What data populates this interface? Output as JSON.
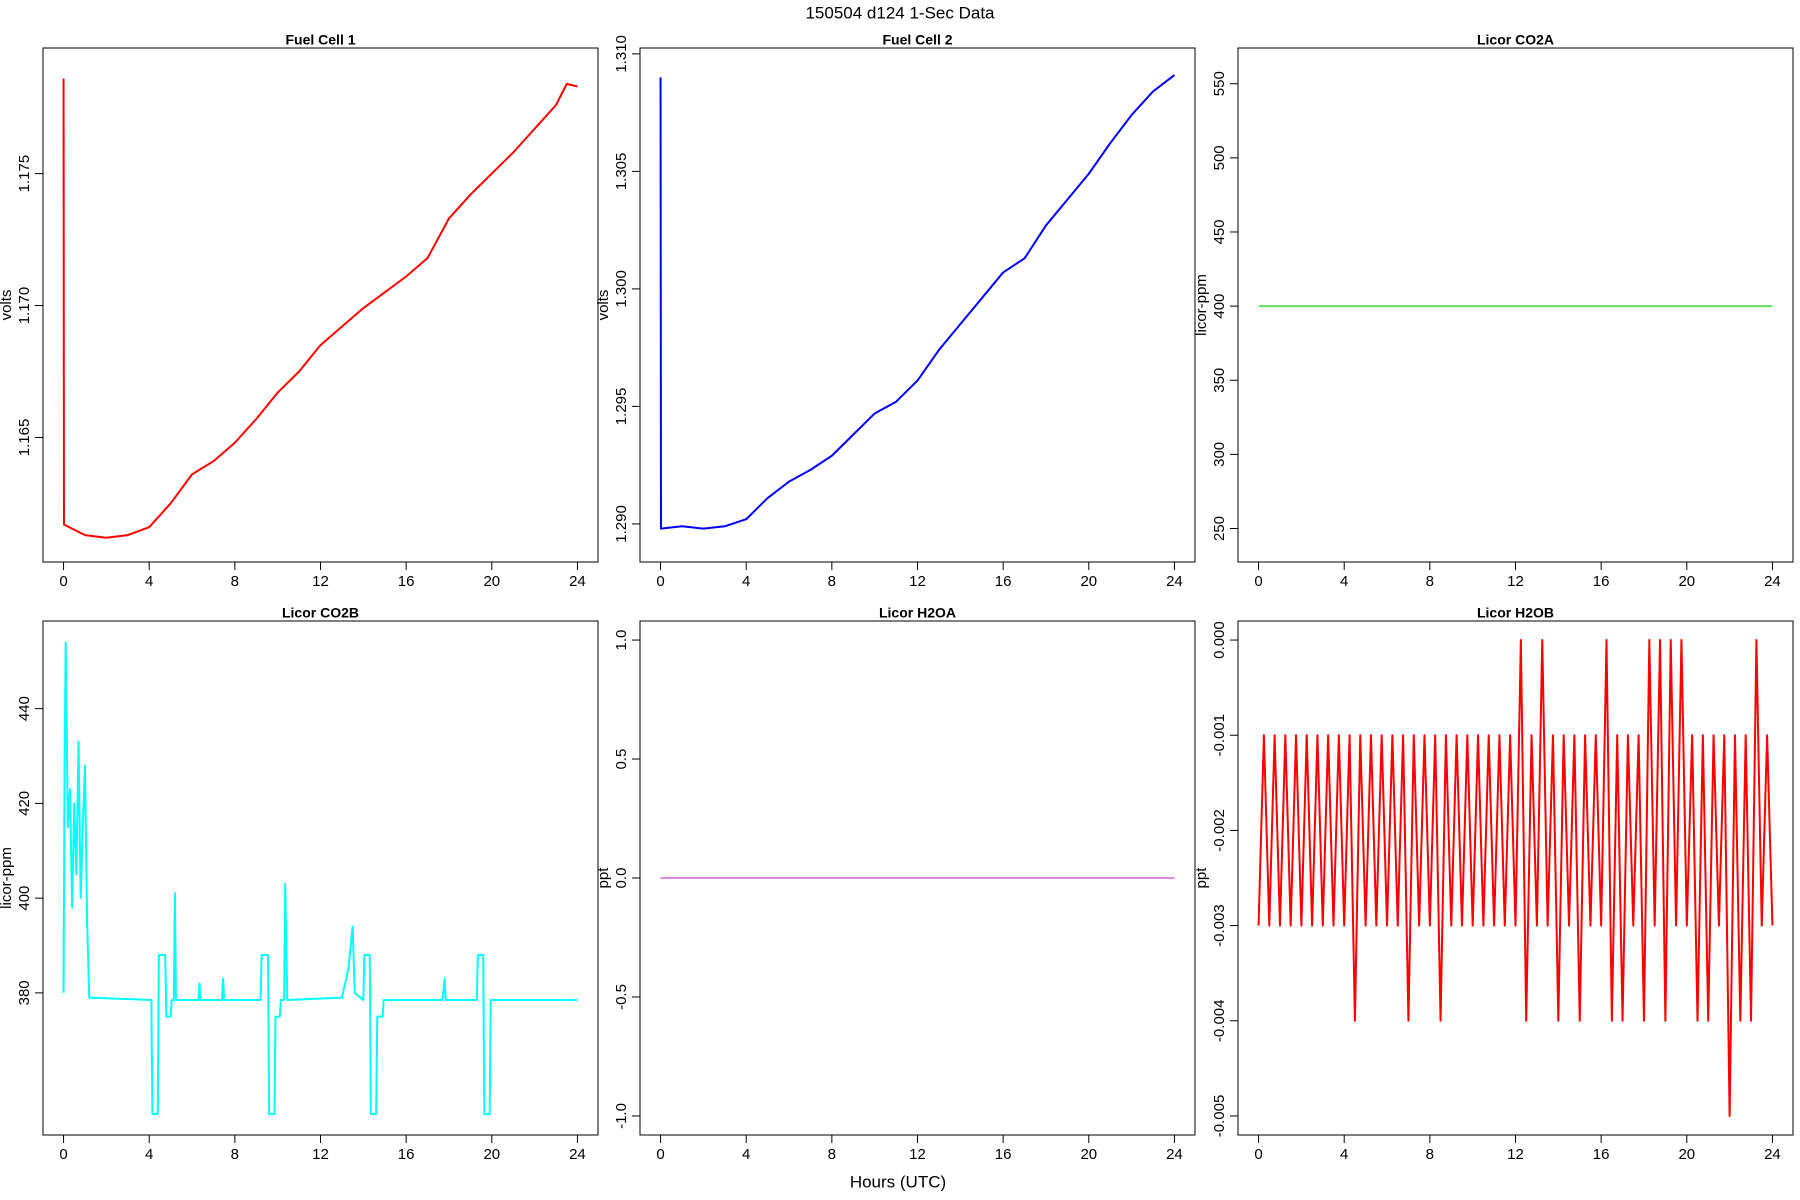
{
  "title": "150504   d124   1-Sec Data",
  "x_label": "Hours (UTC)",
  "chart_data": [
    {
      "type": "line",
      "title": "Fuel Cell 1",
      "y_label": "volts",
      "color": "#ff0000",
      "xlim": [
        -0.96,
        24.96
      ],
      "xticks": [
        0,
        4,
        8,
        12,
        16,
        20,
        24
      ],
      "ylim": [
        1.16028,
        1.17976
      ],
      "yticks": [
        1.165,
        {
          "value": 1.17,
          "label": "1.170"
        },
        1.175
      ],
      "x": [
        0,
        0.02,
        1,
        2,
        3,
        4,
        5,
        6,
        7,
        8,
        9,
        10,
        11,
        12,
        13,
        14,
        15,
        16,
        17,
        18,
        19,
        20,
        21,
        22,
        23,
        23.5,
        24
      ],
      "values": [
        1.1786,
        1.1617,
        1.1613,
        1.1612,
        1.1613,
        1.1616,
        1.1625,
        1.1636,
        1.1641,
        1.1648,
        1.1657,
        1.1667,
        1.1675,
        1.1685,
        1.1692,
        1.1699,
        1.1705,
        1.1711,
        1.1718,
        1.1733,
        1.1742,
        1.175,
        1.1758,
        1.1767,
        1.1776,
        1.1784,
        1.1783
      ]
    },
    {
      "type": "line",
      "title": "Fuel Cell 2",
      "y_label": "volts",
      "color": "#0000ff",
      "xlim": [
        -0.96,
        24.96
      ],
      "xticks": [
        0,
        4,
        8,
        12,
        16,
        20,
        24
      ],
      "ylim": [
        1.28838,
        1.31025
      ],
      "yticks": [
        {
          "value": 1.29,
          "label": "1.290"
        },
        1.295,
        {
          "value": 1.3,
          "label": "1.300"
        },
        1.305,
        {
          "value": 1.31,
          "label": "1.310"
        }
      ],
      "x": [
        0,
        0.02,
        1,
        2,
        3,
        4,
        5,
        6,
        7,
        8,
        9,
        10,
        11,
        12,
        13,
        14,
        15,
        16,
        17,
        18,
        19,
        20,
        21,
        22,
        23,
        24
      ],
      "values": [
        1.309,
        1.2898,
        1.2899,
        1.2898,
        1.2899,
        1.2902,
        1.2911,
        1.2918,
        1.2923,
        1.2929,
        1.2938,
        1.2947,
        1.2952,
        1.2961,
        1.2974,
        1.2985,
        1.2996,
        1.3007,
        1.3013,
        1.3027,
        1.3038,
        1.3049,
        1.3062,
        1.3074,
        1.3084,
        1.3091
      ]
    },
    {
      "type": "line",
      "title": "Licor CO2A",
      "y_label": "licor-ppm",
      "color": "#66dd66",
      "xlim": [
        -0.96,
        24.96
      ],
      "xticks": [
        0,
        4,
        8,
        12,
        16,
        20,
        24
      ],
      "ylim": [
        227.4,
        574.1
      ],
      "yticks": [
        250,
        300,
        350,
        400,
        450,
        500,
        550
      ],
      "x": [
        0,
        24
      ],
      "values": [
        400,
        400
      ]
    },
    {
      "type": "line",
      "title": "Licor CO2B",
      "y_label": "licor-ppm",
      "color": "#00ffff",
      "xlim": [
        -0.96,
        24.96
      ],
      "xticks": [
        0,
        4,
        8,
        12,
        16,
        20,
        24
      ],
      "ylim": [
        350,
        458.5
      ],
      "yticks": [
        380,
        400,
        420,
        440
      ],
      "x": [
        0,
        0.05,
        0.1,
        0.2,
        0.3,
        0.4,
        0.5,
        0.6,
        0.7,
        0.8,
        0.9,
        1.0,
        1.1,
        1.2,
        4.1,
        4.15,
        4.4,
        4.45,
        4.75,
        4.8,
        5.0,
        5.05,
        5.15,
        5.2,
        5.25,
        6.3,
        6.35,
        6.4,
        7.4,
        7.45,
        7.5,
        9.2,
        9.25,
        9.55,
        9.6,
        9.85,
        9.9,
        10.1,
        10.15,
        10.3,
        10.35,
        10.45,
        13.0,
        13.3,
        13.5,
        13.6,
        14.0,
        14.05,
        14.3,
        14.35,
        14.6,
        14.65,
        14.9,
        14.95,
        17.7,
        17.8,
        17.85,
        19.3,
        19.35,
        19.6,
        19.65,
        19.9,
        19.95,
        24
      ],
      "values": [
        380,
        430,
        454,
        415,
        423,
        398,
        420,
        405,
        433,
        400,
        415,
        428,
        395,
        379,
        378.5,
        354.4,
        354.4,
        388,
        388,
        375,
        375,
        378.5,
        378.5,
        401,
        378.5,
        378.5,
        382,
        378.5,
        378.5,
        383,
        378.5,
        378.5,
        388,
        388,
        354.4,
        354.4,
        375,
        375,
        378.5,
        378.5,
        403,
        378.5,
        379,
        385,
        394,
        380,
        378.5,
        388,
        388,
        354.4,
        354.4,
        375,
        375,
        378.5,
        378.5,
        383,
        378.5,
        378.5,
        388,
        388,
        354.4,
        354.4,
        378.5,
        378.5
      ]
    },
    {
      "type": "line",
      "title": "Licor H2OA",
      "y_label": "ppt",
      "color": "#dd88dd",
      "xlim": [
        -0.96,
        24.96
      ],
      "xticks": [
        0,
        4,
        8,
        12,
        16,
        20,
        24
      ],
      "ylim": [
        -1.08,
        1.08
      ],
      "yticks": [
        {
          "value": -1,
          "label": "-1.0"
        },
        -0.5,
        {
          "value": 0,
          "label": "0.0"
        },
        0.5,
        {
          "value": 1,
          "label": "1.0"
        }
      ],
      "x": [
        0,
        24
      ],
      "values": [
        0,
        0
      ]
    },
    {
      "type": "line",
      "title": "Licor H2OB",
      "y_label": "ppt",
      "color": "#ff0000",
      "xlim": [
        -0.96,
        24.96
      ],
      "xticks": [
        0,
        4,
        8,
        12,
        16,
        20,
        24
      ],
      "ylim": [
        -0.0052,
        0.0002
      ],
      "yticks": [
        -0.005,
        -0.004,
        -0.003,
        -0.002,
        -0.001,
        {
          "value": 0,
          "label": "0.000"
        }
      ],
      "x": [
        0,
        0.25,
        0.5,
        0.75,
        1,
        1.25,
        1.5,
        1.75,
        2,
        2.25,
        2.5,
        2.75,
        3,
        3.25,
        3.5,
        3.75,
        4,
        4.25,
        4.5,
        4.75,
        5,
        5.25,
        5.5,
        5.75,
        6,
        6.25,
        6.5,
        6.75,
        7,
        7.25,
        7.5,
        7.75,
        8,
        8.25,
        8.5,
        8.75,
        9,
        9.25,
        9.5,
        9.75,
        10,
        10.25,
        10.5,
        10.75,
        11,
        11.25,
        11.5,
        11.75,
        12,
        12.25,
        12.5,
        12.75,
        13,
        13.25,
        13.5,
        13.75,
        14,
        14.25,
        14.5,
        14.75,
        15,
        15.25,
        15.5,
        15.75,
        16,
        16.25,
        16.5,
        16.75,
        17,
        17.25,
        17.5,
        17.75,
        18,
        18.25,
        18.5,
        18.75,
        19,
        19.25,
        19.5,
        19.75,
        20,
        20.25,
        20.5,
        20.75,
        21,
        21.25,
        21.5,
        21.75,
        22,
        22.25,
        22.5,
        22.75,
        23,
        23.25,
        23.5,
        23.75,
        24
      ],
      "values": [
        -0.003,
        -0.001,
        -0.003,
        -0.001,
        -0.003,
        -0.001,
        -0.003,
        -0.001,
        -0.003,
        -0.001,
        -0.003,
        -0.001,
        -0.003,
        -0.001,
        -0.003,
        -0.001,
        -0.003,
        -0.001,
        -0.004,
        -0.001,
        -0.003,
        -0.001,
        -0.003,
        -0.001,
        -0.003,
        -0.001,
        -0.003,
        -0.001,
        -0.004,
        -0.001,
        -0.003,
        -0.001,
        -0.003,
        -0.001,
        -0.004,
        -0.001,
        -0.003,
        -0.001,
        -0.003,
        -0.001,
        -0.003,
        -0.001,
        -0.003,
        -0.001,
        -0.003,
        -0.001,
        -0.003,
        -0.001,
        -0.003,
        0,
        -0.004,
        -0.001,
        -0.003,
        0,
        -0.003,
        -0.001,
        -0.004,
        -0.001,
        -0.003,
        -0.001,
        -0.004,
        -0.001,
        -0.003,
        -0.001,
        -0.003,
        0,
        -0.004,
        -0.001,
        -0.004,
        -0.001,
        -0.003,
        -0.001,
        -0.004,
        0,
        -0.003,
        0,
        -0.004,
        0,
        -0.003,
        0,
        -0.003,
        -0.001,
        -0.004,
        -0.001,
        -0.004,
        -0.001,
        -0.003,
        -0.001,
        -0.005,
        -0.001,
        -0.004,
        -0.001,
        -0.004,
        0,
        -0.003,
        -0.001,
        -0.003
      ]
    }
  ]
}
